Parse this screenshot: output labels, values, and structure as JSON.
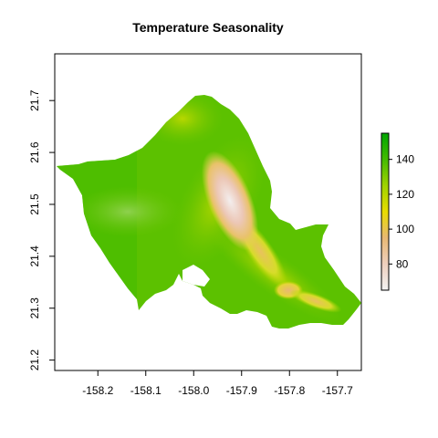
{
  "title": "Temperature Seasonality",
  "map": {
    "type": "raster-map",
    "x_ticks": [
      -158.2,
      -158.1,
      -158.0,
      -157.9,
      -157.8,
      -157.7
    ],
    "x_tick_labels": [
      "-158.2",
      "-158.1",
      "-158.0",
      "-157.9",
      "-157.8",
      "-157.7"
    ],
    "y_ticks": [
      21.2,
      21.3,
      21.4,
      21.5,
      21.6,
      21.7
    ],
    "y_tick_labels": [
      "21.2",
      "21.3",
      "21.4",
      "21.5",
      "21.6",
      "21.7"
    ],
    "xlim": [
      -158.29,
      -157.65
    ],
    "ylim": [
      21.18,
      21.79
    ]
  },
  "legend": {
    "ticks": [
      80,
      100,
      120,
      140
    ],
    "tick_labels": [
      "80",
      "100",
      "120",
      "140"
    ],
    "range": [
      65,
      155
    ],
    "colors": [
      "#f2f2f2",
      "#eecfbd",
      "#e8b873",
      "#e8dc00",
      "#9fd300",
      "#44bb00",
      "#00a600"
    ]
  }
}
